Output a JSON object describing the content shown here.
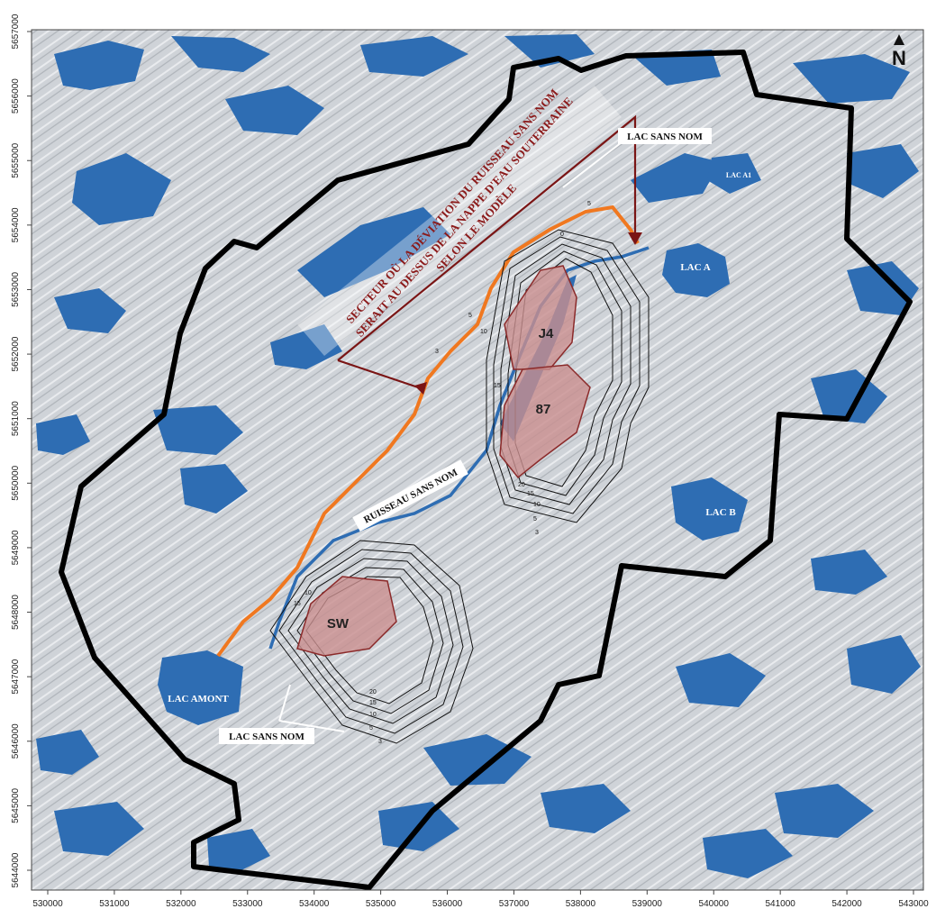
{
  "north_arrow": {
    "label": "N"
  },
  "x_axis": {
    "ticks": [
      "530000",
      "531000",
      "532000",
      "533000",
      "534000",
      "535000",
      "536000",
      "537000",
      "538000",
      "539000",
      "540000",
      "541000",
      "542000",
      "543000"
    ]
  },
  "y_axis": {
    "ticks": [
      "5657000",
      "5656000",
      "5655000",
      "5654000",
      "5653000",
      "5652000",
      "5651000",
      "5650000",
      "5649000",
      "5648000",
      "5647000",
      "5646000",
      "5645000",
      "5644000"
    ]
  },
  "sector_annotation": {
    "lines": [
      "SECTEUR OÙ LA DÉVIATION DU RUISSEAU SANS NOM",
      "SERAIT AU DESSUS DE LA NAPPE D'EAU SOUTERRAINE",
      "SELON LE MODÈLE"
    ]
  },
  "labels": {
    "lac_sans_nom_north": "LAC SANS NOM",
    "lac_sans_nom_south": "LAC SANS NOM",
    "lac_a1": "LAC A1",
    "lac_a": "LAC A",
    "lac_b": "LAC B",
    "lac_amont": "LAC AMONT",
    "ruisseau": "RUISSEAU SANS NOM"
  },
  "pits": {
    "j4": "J4",
    "p87": "87",
    "sw": "SW"
  },
  "contours": {
    "ne": [
      "20",
      "15",
      "10",
      "5",
      "3"
    ],
    "sw": [
      "20",
      "15",
      "10",
      "5",
      "3"
    ],
    "ne_west": [
      "3",
      "5",
      "10",
      "15"
    ],
    "ne_east": [
      "0",
      "5"
    ],
    "sw_west": [
      "15",
      "10"
    ]
  },
  "colors": {
    "water": "#2e6db3",
    "terrain": "#cdd1d6",
    "boundary": "#000000",
    "diversion": "#f07820",
    "sector": "#7a1515",
    "pit_fill": "#c98f8f"
  }
}
